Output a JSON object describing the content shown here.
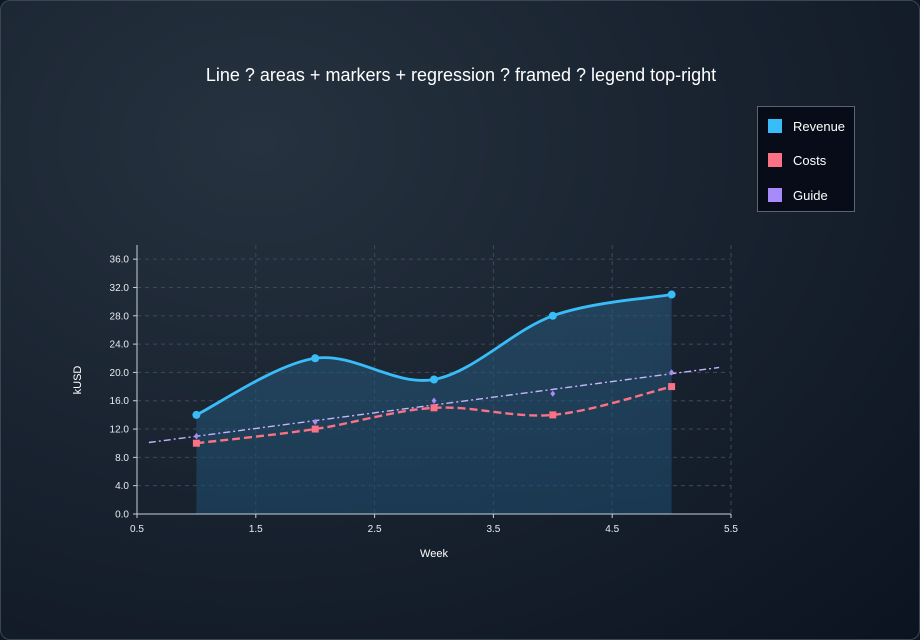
{
  "chart_data": {
    "type": "line",
    "title": "Line ? areas + markers + regression ? framed ? legend top-right",
    "xlabel": "Week",
    "ylabel": "kUSD",
    "x": [
      1,
      2,
      3,
      4,
      5
    ],
    "xlim": [
      0.5,
      5.5
    ],
    "ylim": [
      0,
      38
    ],
    "xticks": [
      "0.5",
      "1.5",
      "2.5",
      "3.5",
      "4.5",
      "5.5"
    ],
    "yticks": [
      "0.0",
      "4.0",
      "8.0",
      "12.0",
      "16.0",
      "20.0",
      "24.0",
      "28.0",
      "32.0",
      "36.0"
    ],
    "grid": true,
    "legend_position": "top-right",
    "series": [
      {
        "name": "Revenue",
        "values": [
          14,
          22,
          19,
          28,
          31
        ],
        "color": "#38bdf8",
        "style": "solid smooth with filled area",
        "marker": "circle"
      },
      {
        "name": "Costs",
        "values": [
          10,
          12,
          15,
          14,
          18
        ],
        "color": "#fb7185",
        "style": "dashed smooth",
        "marker": "square"
      },
      {
        "name": "Guide",
        "values": [
          11,
          13,
          16,
          17,
          20
        ],
        "color": "#a78bfa",
        "style": "markers with dash-dot regression line",
        "marker": "diamond",
        "regression": {
          "x_range": [
            0.6,
            5.4
          ],
          "y_range": [
            10.1,
            20.7
          ]
        }
      }
    ]
  }
}
